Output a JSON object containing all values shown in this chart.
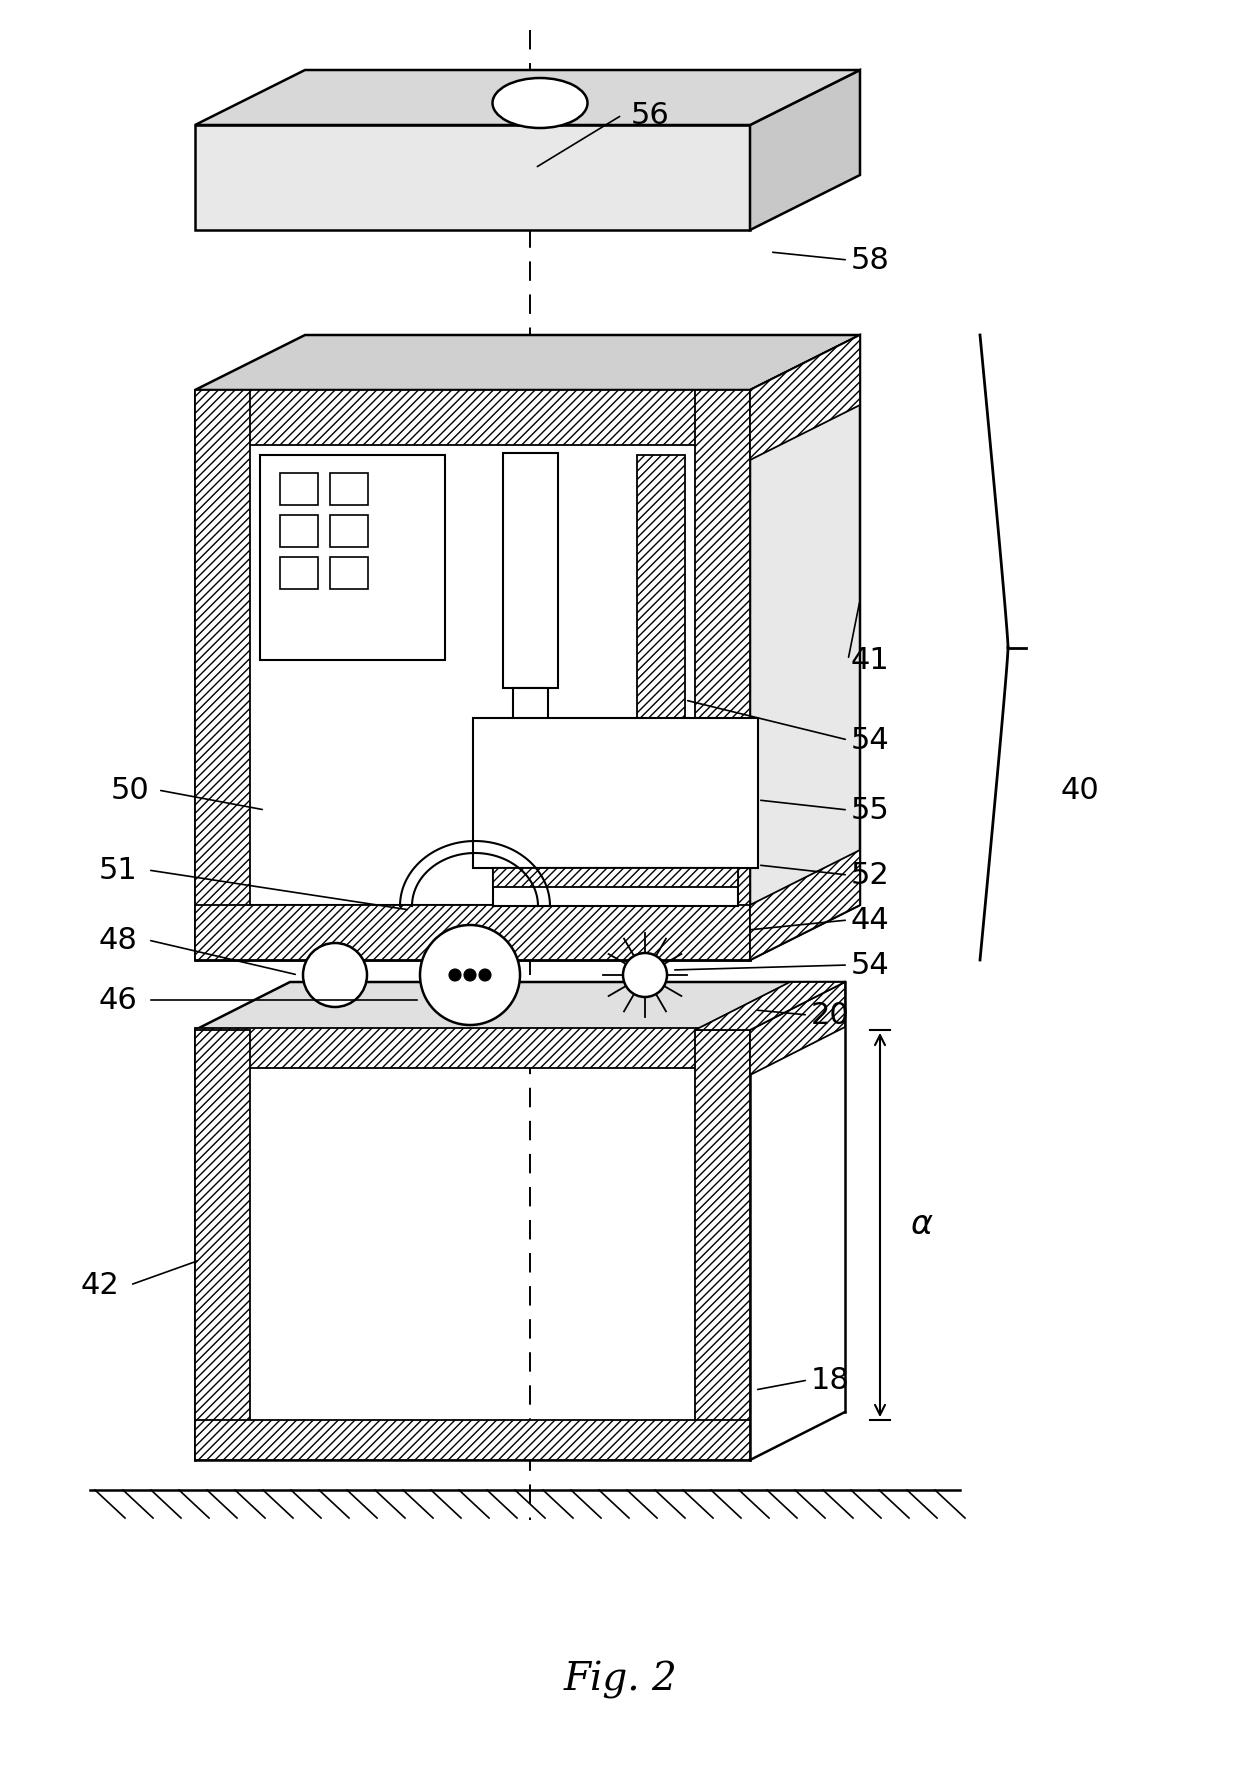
{
  "fig_caption": "Fig. 2",
  "bg_color": "#ffffff",
  "lc": "#000000"
}
